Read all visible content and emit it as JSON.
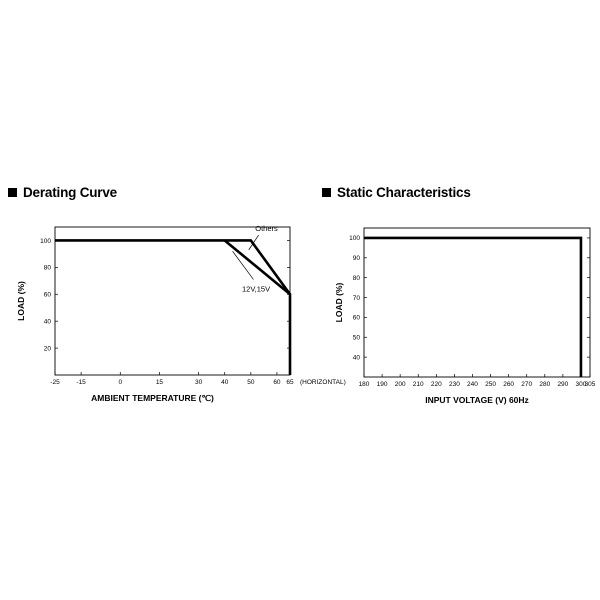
{
  "chart_data": [
    {
      "type": "line",
      "title": "Derating Curve",
      "xlabel": "AMBIENT TEMPERATURE (℃)",
      "ylabel": "LOAD (%)",
      "x_ticks": [
        -25,
        -15,
        0,
        15,
        30,
        40,
        50,
        60,
        65
      ],
      "x_tick_labels": [
        "-25",
        "-15",
        "0",
        "15",
        "30",
        "40",
        "50",
        "60",
        "65"
      ],
      "x_note": "(HORIZONTAL)",
      "y_ticks": [
        20,
        40,
        60,
        80,
        100
      ],
      "y_tick_labels": [
        "20",
        "40",
        "60",
        "80",
        "100"
      ],
      "xlim": [
        -25,
        65
      ],
      "ylim": [
        0,
        110
      ],
      "grid": false,
      "series": [
        {
          "name": "Others",
          "x": [
            -25,
            50,
            65,
            65
          ],
          "y": [
            100,
            100,
            60,
            0
          ]
        },
        {
          "name": "12V,15V",
          "x": [
            40,
            65
          ],
          "y": [
            100,
            60
          ]
        }
      ],
      "annotations": [
        {
          "text": "Others",
          "x": 56,
          "y": 107
        },
        {
          "text": "12V,15V",
          "x": 52,
          "y": 62
        }
      ]
    },
    {
      "type": "line",
      "title": "Static Characteristics",
      "xlabel": "INPUT VOLTAGE (V) 60Hz",
      "ylabel": "LOAD (%)",
      "x_ticks": [
        180,
        190,
        200,
        210,
        220,
        230,
        240,
        250,
        260,
        270,
        280,
        290,
        300,
        305
      ],
      "x_tick_labels": [
        "180",
        "190",
        "200",
        "210",
        "220",
        "230",
        "240",
        "250",
        "260",
        "270",
        "280",
        "290",
        "300",
        "305"
      ],
      "y_ticks": [
        40,
        50,
        60,
        70,
        80,
        90,
        100
      ],
      "y_tick_labels": [
        "40",
        "50",
        "60",
        "70",
        "80",
        "90",
        "100"
      ],
      "xlim": [
        180,
        305
      ],
      "ylim": [
        30,
        105
      ],
      "grid": false,
      "series": [
        {
          "x": [
            180,
            300,
            300
          ],
          "y": [
            100,
            100,
            30
          ]
        }
      ]
    }
  ]
}
